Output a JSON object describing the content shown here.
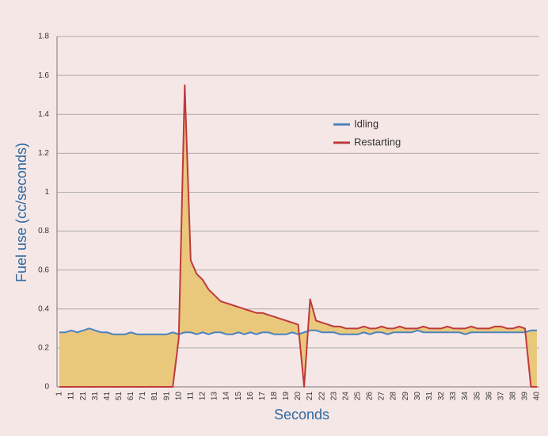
{
  "chart_data": {
    "type": "line",
    "x_label": "Seconds",
    "y_label": "Fuel use (cc/seconds)",
    "categories": [
      "1",
      null,
      "11",
      null,
      "21",
      null,
      "31",
      null,
      "41",
      null,
      "51",
      null,
      "61",
      null,
      "71",
      null,
      "81",
      null,
      "91",
      null,
      "10",
      null,
      "11",
      null,
      "12",
      null,
      "13",
      null,
      "14",
      null,
      "15",
      null,
      "16",
      null,
      "17",
      null,
      "18",
      null,
      "19",
      null,
      "20",
      null,
      "21",
      null,
      "22",
      null,
      "23",
      null,
      "24",
      null,
      "25",
      null,
      "26",
      null,
      "27",
      null,
      "28",
      null,
      "29",
      null,
      "30",
      null,
      "31",
      null,
      "32",
      null,
      "33",
      null,
      "34",
      null,
      "35",
      null,
      "36",
      null,
      "37",
      null,
      "38",
      null,
      "39",
      null,
      "40"
    ],
    "series": [
      {
        "name": "Idling",
        "color": "#4a82c0",
        "values": [
          0.28,
          0.28,
          0.29,
          0.28,
          0.29,
          0.3,
          0.29,
          0.28,
          0.28,
          0.27,
          0.27,
          0.27,
          0.28,
          0.27,
          0.27,
          0.27,
          0.27,
          0.27,
          0.27,
          0.28,
          0.27,
          0.28,
          0.28,
          0.27,
          0.28,
          0.27,
          0.28,
          0.28,
          0.27,
          0.27,
          0.28,
          0.27,
          0.28,
          0.27,
          0.28,
          0.28,
          0.27,
          0.27,
          0.27,
          0.28,
          0.27,
          0.28,
          0.29,
          0.29,
          0.28,
          0.28,
          0.28,
          0.27,
          0.27,
          0.27,
          0.27,
          0.28,
          0.27,
          0.28,
          0.28,
          0.27,
          0.28,
          0.28,
          0.28,
          0.28,
          0.29,
          0.28,
          0.28,
          0.28,
          0.28,
          0.28,
          0.28,
          0.28,
          0.27,
          0.28,
          0.28,
          0.28,
          0.28,
          0.28,
          0.28,
          0.28,
          0.28,
          0.28,
          0.28,
          0.29,
          0.29
        ]
      },
      {
        "name": "Restarting",
        "color": "#c0393b",
        "values": [
          0,
          0,
          0,
          0,
          0,
          0,
          0,
          0,
          0,
          0,
          0,
          0,
          0,
          0,
          0,
          0,
          0,
          0,
          0,
          0,
          0.25,
          1.55,
          0.65,
          0.58,
          0.55,
          0.5,
          0.47,
          0.44,
          0.43,
          0.42,
          0.41,
          0.4,
          0.39,
          0.38,
          0.38,
          0.37,
          0.36,
          0.35,
          0.34,
          0.33,
          0.32,
          0,
          0.45,
          0.34,
          0.33,
          0.32,
          0.31,
          0.31,
          0.3,
          0.3,
          0.3,
          0.31,
          0.3,
          0.3,
          0.31,
          0.3,
          0.3,
          0.31,
          0.3,
          0.3,
          0.3,
          0.31,
          0.3,
          0.3,
          0.3,
          0.31,
          0.3,
          0.3,
          0.3,
          0.31,
          0.3,
          0.3,
          0.3,
          0.31,
          0.31,
          0.3,
          0.3,
          0.31,
          0.3,
          0,
          0
        ]
      }
    ],
    "fill_between_color": "#e9c87c",
    "ylim": [
      0,
      1.8
    ],
    "yticks": [
      0,
      0.2,
      0.4,
      0.6,
      0.8,
      1,
      1.2,
      1.4,
      1.6,
      1.8
    ],
    "grid": true
  }
}
